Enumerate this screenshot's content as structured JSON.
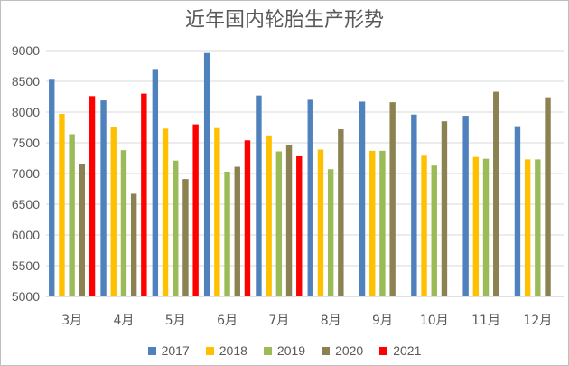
{
  "chart_data": {
    "type": "bar",
    "title": "近年国内轮胎生产形势",
    "categories": [
      "3月",
      "4月",
      "5月",
      "6月",
      "7月",
      "8月",
      "9月",
      "10月",
      "11月",
      "12月"
    ],
    "ylim": [
      5000,
      9000
    ],
    "yticks": [
      "5000",
      "5500",
      "6000",
      "6500",
      "7000",
      "7500",
      "8000",
      "8500",
      "9000"
    ],
    "grid": true,
    "legend_position": "bottom",
    "series": [
      {
        "name": "2017",
        "color": "#4f81bd",
        "values": [
          8540,
          8190,
          8700,
          8960,
          8270,
          8200,
          8170,
          7960,
          7940,
          7770
        ]
      },
      {
        "name": "2018",
        "color": "#ffc000",
        "values": [
          7970,
          7760,
          7730,
          7740,
          7620,
          7390,
          7370,
          7290,
          7270,
          7230
        ]
      },
      {
        "name": "2019",
        "color": "#9bbb59",
        "values": [
          7640,
          7380,
          7210,
          7030,
          7360,
          7070,
          7370,
          7130,
          7240,
          7230
        ]
      },
      {
        "name": "2020",
        "color": "#8c8150",
        "values": [
          7160,
          6670,
          6910,
          7110,
          7470,
          7720,
          8160,
          7850,
          8330,
          8240
        ]
      },
      {
        "name": "2021",
        "color": "#ff0000",
        "values": [
          8260,
          8300,
          7800,
          7540,
          7280,
          null,
          null,
          null,
          null,
          null
        ]
      }
    ]
  }
}
